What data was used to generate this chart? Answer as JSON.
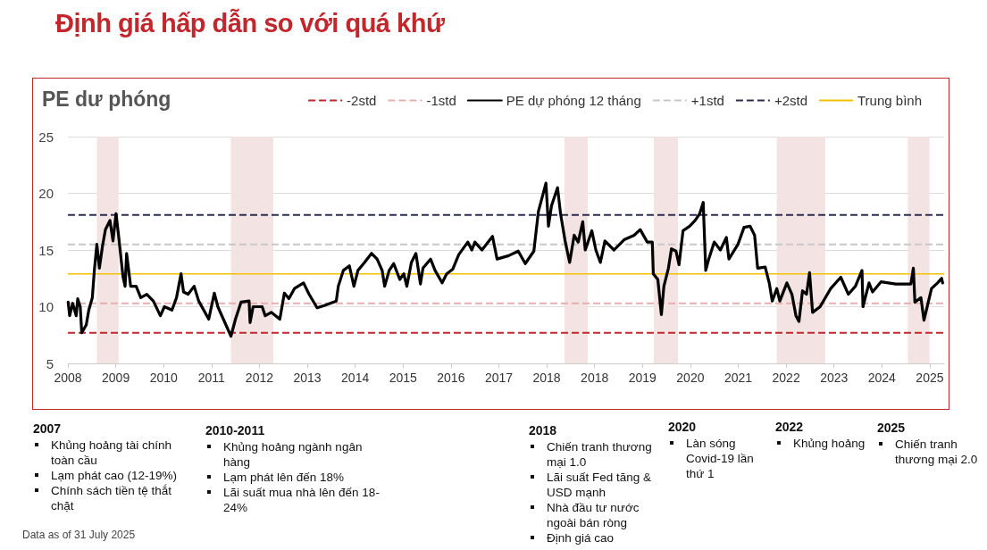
{
  "chart_data": {
    "type": "line",
    "title": "Định giá hấp dẫn so với quá khứ",
    "subtitle": "PE dư phóng",
    "xlim": [
      2008.025,
      2025.41
    ],
    "xticks": [
      {
        "value": 2008.025,
        "label": "2008"
      },
      {
        "value": 2008.975,
        "label": "2009"
      },
      {
        "value": 2009.925,
        "label": "2010"
      },
      {
        "value": 2010.875,
        "label": "2011"
      },
      {
        "value": 2011.825,
        "label": "2012"
      },
      {
        "value": 2012.775,
        "label": "2013"
      },
      {
        "value": 2013.725,
        "label": "2014"
      },
      {
        "value": 2014.675,
        "label": "2015"
      },
      {
        "value": 2015.625,
        "label": "2016"
      },
      {
        "value": 2016.575,
        "label": "2017"
      },
      {
        "value": 2017.525,
        "label": "2018"
      },
      {
        "value": 2018.475,
        "label": "2018"
      },
      {
        "value": 2019.425,
        "label": "2019"
      },
      {
        "value": 2020.375,
        "label": "2020"
      },
      {
        "value": 2021.325,
        "label": "2021"
      },
      {
        "value": 2022.275,
        "label": "2022"
      },
      {
        "value": 2023.225,
        "label": "2023"
      },
      {
        "value": 2024.175,
        "label": "2024"
      },
      {
        "value": 2025.125,
        "label": "2025"
      }
    ],
    "ylim": [
      5,
      25
    ],
    "yticks": [
      5,
      10,
      15,
      20,
      25
    ],
    "grid": "y",
    "legend": "top right",
    "marker": "none",
    "line_style": "solid",
    "series": [
      {
        "name": "PE dự phóng 12 tháng",
        "color": "#000000",
        "x": [
          2008.03,
          2008.06,
          2008.12,
          2008.19,
          2008.22,
          2008.27,
          2008.3,
          2008.39,
          2008.44,
          2008.51,
          2008.55,
          2008.6,
          2008.65,
          2008.71,
          2008.77,
          2008.86,
          2008.92,
          2008.98,
          2009.03,
          2009.12,
          2009.16,
          2009.19,
          2009.27,
          2009.38,
          2009.47,
          2009.59,
          2009.72,
          2009.86,
          2009.94,
          2010.09,
          2010.18,
          2010.27,
          2010.32,
          2010.41,
          2010.53,
          2010.62,
          2010.82,
          2010.93,
          2011.0,
          2011.26,
          2011.35,
          2011.46,
          2011.62,
          2011.64,
          2011.7,
          2011.88,
          2011.94,
          2012.06,
          2012.23,
          2012.32,
          2012.41,
          2012.52,
          2012.7,
          2012.81,
          2012.97,
          2013.11,
          2013.35,
          2013.39,
          2013.49,
          2013.61,
          2013.7,
          2013.78,
          2013.91,
          2014.05,
          2014.16,
          2014.26,
          2014.31,
          2014.4,
          2014.49,
          2014.61,
          2014.69,
          2014.75,
          2014.84,
          2014.93,
          2015.02,
          2015.07,
          2015.22,
          2015.31,
          2015.45,
          2015.54,
          2015.66,
          2015.78,
          2015.96,
          2016.04,
          2016.1,
          2016.24,
          2016.45,
          2016.54,
          2016.77,
          2016.96,
          2017.1,
          2017.27,
          2017.36,
          2017.51,
          2017.56,
          2017.62,
          2017.74,
          2017.8,
          2017.89,
          2017.98,
          2018.07,
          2018.15,
          2018.24,
          2018.29,
          2018.42,
          2018.5,
          2018.59,
          2018.68,
          2018.86,
          2019.06,
          2019.26,
          2019.38,
          2019.52,
          2019.62,
          2019.64,
          2019.73,
          2019.8,
          2019.85,
          2019.94,
          2020.0,
          2020.09,
          2020.15,
          2020.23,
          2020.36,
          2020.47,
          2020.56,
          2020.63,
          2020.68,
          2020.74,
          2020.85,
          2020.97,
          2021.09,
          2021.14,
          2021.32,
          2021.44,
          2021.56,
          2021.65,
          2021.71,
          2021.86,
          2021.94,
          2022.0,
          2022.09,
          2022.15,
          2022.29,
          2022.39,
          2022.47,
          2022.53,
          2022.6,
          2022.68,
          2022.74,
          2022.8,
          2022.95,
          2023.16,
          2023.36,
          2023.51,
          2023.65,
          2023.78,
          2023.8,
          2023.92,
          2023.99,
          2024.16,
          2024.45,
          2024.75,
          2024.8,
          2024.83,
          2024.95,
          2025.01,
          2025.16,
          2025.28,
          2025.36,
          2025.38
        ],
        "values": [
          10.4,
          9.2,
          10.3,
          9.2,
          10.7,
          10.0,
          7.7,
          8.4,
          9.7,
          10.8,
          13.2,
          15.5,
          13.4,
          15.3,
          16.8,
          17.6,
          15.8,
          18.2,
          16.3,
          12.6,
          11.8,
          14.7,
          11.8,
          11.8,
          10.8,
          11.1,
          10.5,
          9.2,
          10.0,
          9.7,
          10.8,
          12.9,
          11.3,
          11.1,
          11.8,
          10.5,
          8.9,
          11.2,
          10.0,
          7.4,
          8.9,
          10.4,
          10.5,
          8.6,
          10.0,
          10.0,
          9.2,
          9.5,
          8.9,
          11.2,
          10.7,
          11.6,
          12.1,
          11.1,
          9.9,
          10.1,
          10.5,
          11.8,
          13.2,
          13.6,
          11.8,
          13.2,
          13.9,
          14.7,
          14.2,
          13.2,
          11.8,
          13.2,
          13.8,
          12.4,
          12.9,
          11.8,
          13.9,
          14.7,
          12.0,
          13.4,
          14.2,
          13.2,
          12.1,
          12.9,
          13.3,
          14.6,
          15.7,
          15.0,
          15.7,
          15.0,
          16.2,
          14.2,
          14.5,
          14.9,
          13.8,
          14.9,
          18.4,
          20.9,
          17.1,
          18.9,
          20.5,
          18.2,
          15.8,
          13.9,
          16.3,
          15.7,
          17.5,
          15.0,
          16.7,
          15.0,
          13.9,
          15.8,
          15.0,
          15.9,
          16.3,
          16.8,
          15.7,
          15.7,
          12.9,
          12.4,
          9.3,
          11.8,
          13.4,
          15.1,
          14.9,
          13.7,
          16.7,
          17.1,
          17.6,
          18.2,
          19.2,
          13.2,
          14.2,
          15.7,
          15.0,
          16.1,
          14.2,
          15.5,
          17.0,
          17.1,
          16.3,
          13.4,
          13.5,
          12.1,
          10.5,
          11.6,
          10.5,
          12.1,
          11.1,
          9.2,
          8.7,
          11.4,
          11.1,
          13.0,
          9.5,
          10.0,
          11.6,
          12.6,
          11.1,
          11.8,
          13.2,
          10.0,
          12.1,
          11.3,
          12.2,
          12.0,
          12.0,
          13.4,
          10.4,
          10.8,
          8.8,
          11.6,
          12.1,
          12.5,
          12.1
        ]
      }
    ],
    "ref_lines": [
      {
        "axis": "y",
        "value": 7.7,
        "label": "-2std",
        "color": "#c0282d",
        "line_style": "dashed"
      },
      {
        "axis": "y",
        "value": 10.3,
        "label": "-1std",
        "color": "#e6b0b0",
        "line_style": "dashed"
      },
      {
        "axis": "y",
        "value": 15.5,
        "label": "+1std",
        "color": "#c8c8c8",
        "line_style": "dashed"
      },
      {
        "axis": "y",
        "value": 18.1,
        "label": "+2std",
        "color": "#2b2d4f",
        "line_style": "dashed"
      },
      {
        "axis": "y",
        "value": 12.9,
        "label": "Trung bình",
        "color": "#f2c200",
        "line_style": "solid"
      }
    ],
    "bands": [
      {
        "axis": "x",
        "from": 2008.6,
        "to": 2009.03,
        "color": "#f3e3e3"
      },
      {
        "axis": "x",
        "from": 2011.26,
        "to": 2012.1,
        "color": "#f3e3e3"
      },
      {
        "axis": "x",
        "from": 2017.88,
        "to": 2018.34,
        "color": "#f3e3e3"
      },
      {
        "axis": "x",
        "from": 2019.65,
        "to": 2020.13,
        "color": "#f3e3e3"
      },
      {
        "axis": "x",
        "from": 2022.09,
        "to": 2023.05,
        "color": "#f3e3e3"
      },
      {
        "axis": "x",
        "from": 2024.69,
        "to": 2025.12,
        "color": "#f3e3e3"
      }
    ],
    "annotations": [
      "2007\nKhủng hoảng tài chính toàn cầu\nLạm phát cao (12-19%)\nChính sách tiền tệ thắt chặt",
      "2010-2011\nKhủng hoảng ngành ngân hàng\nLạm phát lên đến 18%\nLãi suất mua nhà lên đến 18-24%",
      "2018\nChiến tranh thương mại 1.0\nLãi suất Fed tăng & USD mạnh\nNhà đầu tư nước ngoài bán ròng\nĐịnh giá cao",
      "2020\nLàn sóng Covid-19 lần thứ 1",
      "2022\nKhủng hoảng",
      "2025\nChiến tranh thương mại 2.0",
      "Data as of 31 July 2025"
    ]
  }
}
